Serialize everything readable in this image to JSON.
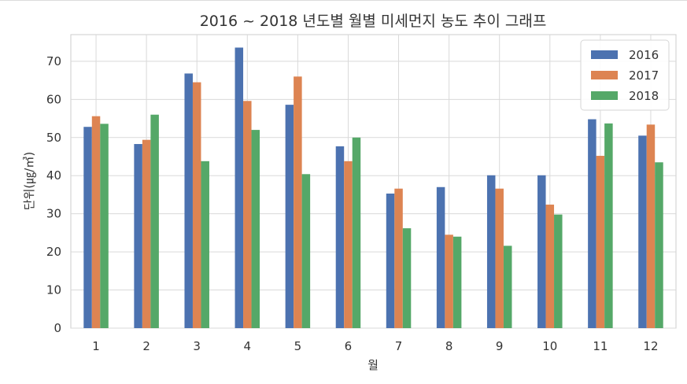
{
  "chart_data": {
    "type": "bar",
    "title": "2016 ~ 2018 년도별 월별 미세먼지 농도 추이 그래프",
    "xlabel": "월",
    "ylabel": "단위(㎍/㎥)",
    "categories": [
      "1",
      "2",
      "3",
      "4",
      "5",
      "6",
      "7",
      "8",
      "9",
      "10",
      "11",
      "12"
    ],
    "yticks": [
      0,
      10,
      20,
      30,
      40,
      50,
      60,
      70
    ],
    "ylim": [
      0,
      77
    ],
    "grid": true,
    "legend_position": "top-right",
    "series": [
      {
        "name": "2016",
        "color": "#4c72b0",
        "values": [
          52.8,
          48.3,
          66.8,
          73.6,
          58.6,
          47.7,
          35.3,
          37.0,
          40.1,
          40.1,
          54.8,
          50.5
        ]
      },
      {
        "name": "2017",
        "color": "#dd8452",
        "values": [
          55.6,
          49.4,
          64.5,
          59.6,
          66.0,
          43.8,
          36.6,
          24.5,
          36.6,
          32.4,
          45.2,
          53.4
        ]
      },
      {
        "name": "2018",
        "color": "#55a868",
        "values": [
          53.6,
          56.0,
          43.8,
          52.0,
          40.4,
          50.0,
          26.2,
          24.0,
          21.6,
          29.8,
          53.7,
          43.5
        ]
      }
    ]
  }
}
